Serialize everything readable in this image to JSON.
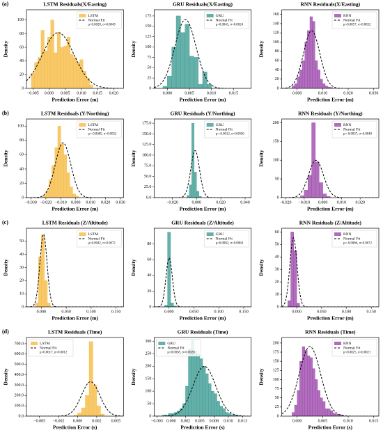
{
  "chart_data": [
    {
      "type": "histogram",
      "panel": "(a)",
      "title": "LSTM Residuals(X/Easting)",
      "xlabel": "Prediction Error (m)",
      "ylabel": "Density",
      "series_name": "LSTM",
      "color": "#f6bc45",
      "legend": "upper right",
      "bins": [
        -0.0055,
        -0.0045,
        -0.0035,
        -0.0025,
        -0.0015,
        -0.0005,
        0.0005,
        0.0015,
        0.0025,
        0.0035,
        0.0045,
        0.0055,
        0.0065,
        0.0075,
        0.0085,
        0.0095,
        0.0105,
        0.0115,
        0.0125,
        0.0135
      ],
      "counts": [
        22,
        38,
        45,
        85,
        55,
        75,
        100,
        52,
        82,
        60,
        62,
        75,
        50,
        45,
        38,
        42,
        25,
        15,
        5
      ],
      "fit": {
        "name": "Normal Fit",
        "mu": 0.0028,
        "sigma": 0.0049,
        "label": "μ=0.0028, σ=0.0049"
      },
      "xlim": [
        -0.007,
        0.023
      ],
      "ylim": [
        0,
        115
      ],
      "xticks": [
        {
          "value": -0.005,
          "label": "−0.005"
        },
        {
          "value": 0,
          "label": "0.000"
        },
        0.005,
        {
          "value": 0.01,
          "label": "0.010"
        },
        0.015,
        {
          "value": 0.02,
          "label": "0.020"
        }
      ],
      "yticks": [
        0,
        20,
        40,
        60,
        80,
        100
      ]
    },
    {
      "type": "histogram",
      "title": "GRU Residuals(X/Easting)",
      "xlabel": "Prediction Error (m)",
      "ylabel": "Density",
      "series_name": "GRU",
      "color": "#3f9c94",
      "legend": "upper right",
      "bins": [
        -0.001,
        0,
        0.001,
        0.002,
        0.003,
        0.004,
        0.005,
        0.006,
        0.007,
        0.008,
        0.009,
        0.01
      ],
      "counts": [
        5,
        30,
        100,
        175,
        135,
        155,
        78,
        75,
        10,
        40,
        10
      ],
      "fit": {
        "name": "Normal Fit",
        "mu": 0.0041,
        "sigma": 0.0024,
        "label": "μ=0.0041, σ=0.0024"
      },
      "xlim": [
        -0.003,
        0.019
      ],
      "ylim": [
        0,
        190
      ],
      "xticks": [
        {
          "value": 0,
          "label": "0.000"
        },
        0.005,
        {
          "value": 0.01,
          "label": "0.010"
        },
        0.015
      ],
      "yticks": [
        0,
        25,
        50,
        75,
        100,
        125,
        150,
        175
      ]
    },
    {
      "type": "histogram",
      "title": "RNN Residuals(X/Easting)",
      "xlabel": "Prediction Error (m)",
      "ylabel": "Density",
      "series_name": "RNN",
      "color": "#9c4aab",
      "legend": "upper right",
      "bins": [
        -0.002,
        -0.001,
        0,
        0.001,
        0.002,
        0.003,
        0.004,
        0.005,
        0.006,
        0.007,
        0.008,
        0.009,
        0.01,
        0.011,
        0.012,
        0.013,
        0.014
      ],
      "counts": [
        5,
        10,
        25,
        40,
        60,
        100,
        125,
        155,
        145,
        60,
        40,
        20,
        10,
        5,
        3,
        2
      ],
      "fit": {
        "name": "Normal Fit",
        "mu": 0.0057,
        "sigma": 0.0032,
        "label": "μ=0.0057, σ=0.0032"
      },
      "xlim": [
        -0.006,
        0.032
      ],
      "ylim": [
        0,
        170
      ],
      "xticks": [
        {
          "value": 0,
          "label": "0.000"
        },
        {
          "value": 0.01,
          "label": "0.010"
        },
        {
          "value": 0.02,
          "label": "0.020"
        },
        {
          "value": 0.03,
          "label": "0.030"
        }
      ],
      "yticks": [
        0,
        20,
        40,
        60,
        80,
        100,
        120,
        140,
        160
      ]
    },
    {
      "type": "histogram",
      "panel": "(b)",
      "title": "LSTM Residuals (Y/Northing)",
      "xlabel": "Prediction Error (m)",
      "ylabel": "Density",
      "series_name": "LSTM",
      "color": "#f6bc45",
      "legend": "upper right",
      "bins": [
        -0.022,
        -0.02,
        -0.018,
        -0.016,
        -0.014,
        -0.012,
        -0.01,
        -0.008,
        -0.006,
        -0.004,
        -0.002,
        0,
        0.002
      ],
      "counts": [
        3,
        10,
        25,
        45,
        70,
        100,
        75,
        60,
        35,
        15,
        5,
        2
      ],
      "fit": {
        "name": "Normal Fit",
        "mu": -0.0085,
        "sigma": 0.0052,
        "label": "μ=-0.0085, σ=0.0052"
      },
      "xlim": [
        -0.033,
        0.032
      ],
      "ylim": [
        0,
        110
      ],
      "xticks": [
        {
          "value": -0.03,
          "label": "−0.030"
        },
        {
          "value": -0.02,
          "label": "−0.020"
        },
        {
          "value": -0.01,
          "label": "−0.010"
        },
        {
          "value": 0,
          "label": "0.000"
        },
        {
          "value": 0.01,
          "label": "0.010"
        },
        {
          "value": 0.02,
          "label": "0.020"
        },
        {
          "value": 0.03,
          "label": "0.030"
        }
      ],
      "yticks": [
        0,
        20,
        40,
        60,
        80,
        100
      ]
    },
    {
      "type": "histogram",
      "title": "GRU Residuals (Y/Northing)",
      "xlabel": "Prediction Error (m)",
      "ylabel": "Density",
      "series_name": "GRU",
      "color": "#3f9c94",
      "legend": "upper right",
      "bins": [
        -0.008,
        -0.006,
        -0.004,
        -0.002,
        0,
        0.002,
        0.004
      ],
      "counts": [
        5,
        30,
        175,
        60,
        15,
        3
      ],
      "fit": {
        "name": "Normal Fit",
        "mu": -0.0012,
        "sigma": 0.0036,
        "label": "μ=-0.0012, σ=0.0036"
      },
      "xlim": [
        -0.035,
        0.045
      ],
      "ylim": [
        0,
        185
      ],
      "xticks": [
        {
          "value": -0.02,
          "label": "−0.020"
        },
        {
          "value": 0,
          "label": "0.000"
        },
        {
          "value": 0.02,
          "label": "0.020"
        },
        {
          "value": 0.04,
          "label": "0.040"
        }
      ],
      "yticks": [
        {
          "value": 0,
          "label": "0.0"
        },
        {
          "value": 25,
          "label": "25.0"
        },
        {
          "value": 50,
          "label": "50.0"
        },
        {
          "value": 75,
          "label": "75.0"
        },
        {
          "value": 100,
          "label": "100.0"
        },
        {
          "value": 125,
          "label": "125.0"
        },
        {
          "value": 150,
          "label": "150.0"
        },
        {
          "value": 175,
          "label": "175.0"
        }
      ]
    },
    {
      "type": "histogram",
      "title": "RNN Residuals (Y/Northing)",
      "xlabel": "Prediction Error (m)",
      "ylabel": "Density",
      "series_name": "RNN",
      "color": "#9c4aab",
      "legend": "upper right",
      "bins": [
        -0.012,
        -0.01,
        -0.008,
        -0.006,
        -0.004,
        -0.002,
        0,
        0.002,
        0.004
      ],
      "counts": [
        5,
        20,
        60,
        200,
        95,
        40,
        10,
        3
      ],
      "fit": {
        "name": "Normal Fit",
        "mu": -0.0037,
        "sigma": 0.004,
        "label": "μ=-0.0037, σ=0.0040"
      },
      "xlim": [
        -0.022,
        0.03
      ],
      "ylim": [
        0,
        210
      ],
      "xticks": [
        {
          "value": -0.02,
          "label": "−0.020"
        },
        {
          "value": -0.01,
          "label": "−0.010"
        },
        {
          "value": 0,
          "label": "0.000"
        },
        {
          "value": 0.01,
          "label": "0.010"
        },
        {
          "value": 0.02,
          "label": "0.020"
        }
      ],
      "yticks": [
        0,
        50,
        100,
        150,
        200
      ]
    },
    {
      "type": "histogram",
      "panel": "(c)",
      "title": "LSTM Residuals (Z/Altitude)",
      "xlabel": "Prediction Error (m)",
      "ylabel": "Density",
      "series_name": "LSTM",
      "color": "#f6bc45",
      "legend": "upper right",
      "bins": [
        -0.012,
        -0.006,
        0,
        0.006,
        0.012,
        0.018
      ],
      "counts": [
        3,
        38,
        55,
        20,
        3
      ],
      "fit": {
        "name": "Normal Fit",
        "mu": 0.0042,
        "sigma": 0.0072,
        "label": "μ=0.0042, σ=0.0072"
      },
      "xlim": [
        -0.03,
        0.165
      ],
      "ylim": [
        0,
        60
      ],
      "xticks": [
        {
          "value": 0,
          "label": "0.000"
        },
        {
          "value": 0.05,
          "label": "0.050"
        },
        {
          "value": 0.1,
          "label": "0.100"
        },
        {
          "value": 0.15,
          "label": "0.150"
        }
      ],
      "yticks": [
        0,
        10,
        20,
        30,
        40,
        50
      ]
    },
    {
      "type": "histogram",
      "title": "GRU Residuals (Z/Altitude)",
      "xlabel": "Prediction Error (m)",
      "ylabel": "Density",
      "series_name": "GRU",
      "color": "#3f9c94",
      "legend": "upper right",
      "bins": [
        -0.009,
        -0.003,
        0.003,
        0.009,
        0.015
      ],
      "counts": [
        2,
        95,
        5,
        1
      ],
      "fit": {
        "name": "Normal Fit",
        "mu": 0.0002,
        "sigma": 0.0064,
        "label": "μ=0.0002, σ=0.0064"
      },
      "xlim": [
        -0.03,
        0.165
      ],
      "ylim": [
        0,
        100
      ],
      "xticks": [
        {
          "value": 0,
          "label": "0.000"
        },
        {
          "value": 0.05,
          "label": "0.050"
        },
        {
          "value": 0.1,
          "label": "0.100"
        },
        {
          "value": 0.15,
          "label": "0.150"
        }
      ],
      "yticks": [
        0,
        20,
        40,
        60,
        80
      ]
    },
    {
      "type": "histogram",
      "title": "RNN Residuals (Z/Altitude)",
      "xlabel": "Prediction Error (m)",
      "ylabel": "Density",
      "series_name": "RNN",
      "color": "#9c4aab",
      "legend": "upper right",
      "bins": [
        -0.018,
        -0.012,
        -0.006,
        0,
        0.006
      ],
      "counts": [
        5,
        60,
        45,
        3
      ],
      "fit": {
        "name": "Normal Fit",
        "mu": -0.0066,
        "sigma": 0.0072,
        "label": "μ=-0.0066, σ=0.0072"
      },
      "xlim": [
        -0.03,
        0.165
      ],
      "ylim": [
        0,
        63
      ],
      "xticks": [
        {
          "value": 0,
          "label": "0.000"
        },
        {
          "value": 0.05,
          "label": "0.050"
        },
        {
          "value": 0.1,
          "label": "0.100"
        },
        {
          "value": 0.15,
          "label": "0.150"
        }
      ],
      "yticks": [
        0,
        10,
        20,
        30,
        40,
        50,
        60
      ]
    },
    {
      "type": "histogram",
      "panel": "(d)",
      "title": "LSTM Residuals (Time)",
      "xlabel": "Prediction Error (s)",
      "ylabel": "Density",
      "series_name": "LSTM",
      "color": "#f6bc45",
      "legend": "upper left",
      "bins": [
        -0.0005,
        0,
        0.0005,
        0.001,
        0.0015,
        0.002,
        0.0025,
        0.003,
        0.0035
      ],
      "counts": [
        10,
        30,
        80,
        200,
        720,
        300,
        100,
        20
      ],
      "fit": {
        "name": "Normal Fit",
        "mu": 0.0017,
        "sigma": 0.0012,
        "label": "μ=0.0017, σ=0.0012"
      },
      "xlim": [
        -0.0067,
        0.006
      ],
      "ylim": [
        0,
        760
      ],
      "xticks": [
        {
          "value": -0.005,
          "label": "−0.005"
        },
        {
          "value": -0.0025,
          "label": "−0.002"
        },
        {
          "value": 0,
          "label": "0.000"
        },
        {
          "value": 0.0025,
          "label": "0.002"
        },
        0.005
      ],
      "yticks": [
        {
          "value": 0,
          "label": "0.0"
        },
        {
          "value": 100,
          "label": "100.0"
        },
        {
          "value": 200,
          "label": "200.0"
        },
        {
          "value": 300,
          "label": "300.0"
        },
        {
          "value": 400,
          "label": "400.0"
        },
        {
          "value": 500,
          "label": "500.0"
        },
        {
          "value": 600,
          "label": "600.0"
        },
        {
          "value": 700,
          "label": "700.0"
        }
      ]
    },
    {
      "type": "histogram",
      "title": "GRU Residuals (Time)",
      "xlabel": "Prediction Error (s)",
      "ylabel": "Density",
      "series_name": "GRU",
      "color": "#3f9c94",
      "legend": "upper left",
      "bins": [
        -0.0015,
        -0.001,
        -0.0005,
        0,
        0.0005,
        0.001,
        0.0015,
        0.002,
        0.0025,
        0.003,
        0.0035,
        0.004,
        0.0045,
        0.005,
        0.0055,
        0.006,
        0.0065,
        0.007,
        0.0075,
        0.008,
        0.0085,
        0.009,
        0.0095,
        0.01,
        0.0105,
        0.011,
        0.0115,
        0.012
      ],
      "counts": [
        5,
        5,
        10,
        10,
        15,
        20,
        30,
        50,
        120,
        270,
        305,
        260,
        250,
        230,
        200,
        170,
        130,
        100,
        90,
        60,
        40,
        30,
        15,
        10,
        5,
        5,
        3
      ],
      "fit": {
        "name": "Normal Fit",
        "mu": 0.0058,
        "sigma": 0.002,
        "label": "μ=0.0058, σ=0.0020"
      },
      "xlim": [
        -0.003,
        0.014
      ],
      "ylim": [
        0,
        315
      ],
      "xticks": [
        {
          "value": -0.0025,
          "label": "−0.003"
        },
        {
          "value": 0,
          "label": "0.000"
        },
        {
          "value": 0.0025,
          "label": "0.002"
        },
        0.005,
        {
          "value": 0.0075,
          "label": "0.008"
        },
        {
          "value": 0.01,
          "label": "0.010"
        },
        {
          "value": 0.0125,
          "label": "0.013"
        }
      ],
      "yticks": [
        0,
        50,
        100,
        150,
        200,
        250,
        300
      ]
    },
    {
      "type": "histogram",
      "title": "RNN Residuals (Time)",
      "xlabel": "Prediction Error (s)",
      "ylabel": "Density",
      "series_name": "RNN",
      "color": "#9c4aab",
      "legend": "upper right",
      "bins": [
        -0.001,
        -0.0005,
        0,
        0.0005,
        0.001,
        0.0015,
        0.002,
        0.0025,
        0.003,
        0.0035,
        0.004,
        0.0045,
        0.005,
        0.0055,
        0.006,
        0.0065,
        0.007,
        0.0075,
        0.008,
        0.0085,
        0.009
      ],
      "counts": [
        10,
        30,
        70,
        150,
        190,
        180,
        165,
        160,
        130,
        100,
        70,
        50,
        40,
        20,
        20,
        15,
        8,
        5,
        5,
        3
      ],
      "fit": {
        "name": "Normal Fit",
        "mu": 0.0025,
        "sigma": 0.0021,
        "label": "μ=0.0025, σ=0.0021"
      },
      "xlim": [
        -0.003,
        0.016
      ],
      "ylim": [
        0,
        215
      ],
      "xticks": [
        {
          "value": 0,
          "label": "0.000"
        },
        0.005,
        {
          "value": 0.01,
          "label": "0.010"
        },
        0.015
      ],
      "yticks": [
        0,
        25,
        50,
        75,
        100,
        125,
        150,
        175,
        200
      ]
    }
  ]
}
